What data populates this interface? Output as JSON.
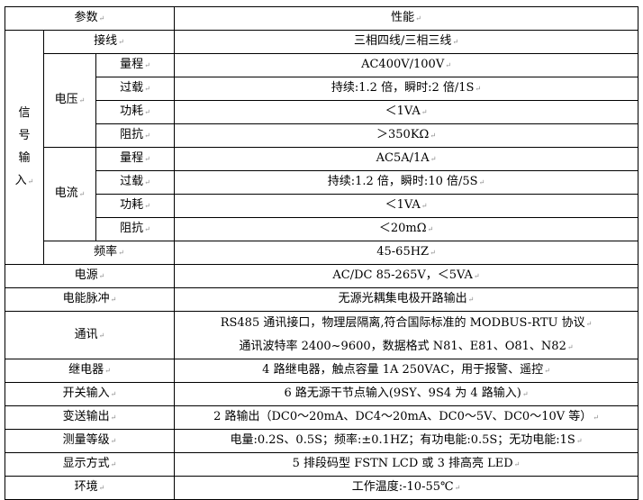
{
  "header": {
    "param": "参数",
    "perf": "性能"
  },
  "signal_input": {
    "label_chars": [
      "信",
      "号",
      "输",
      "入"
    ],
    "wiring": {
      "label": "接线",
      "value": "三相四线/三相三线"
    },
    "voltage": {
      "label": "电压",
      "rows": [
        {
          "label": "量程",
          "value": "AC400V/100V"
        },
        {
          "label": "过载",
          "value": "持续:1.2 倍，瞬时:2 倍/1S"
        },
        {
          "label": "功耗",
          "value": "＜1VA"
        },
        {
          "label": "阻抗",
          "value": "＞350KΩ"
        }
      ]
    },
    "current": {
      "label": "电流",
      "rows": [
        {
          "label": "量程",
          "value": "AC5A/1A"
        },
        {
          "label": "过载",
          "value": "持续:1.2 倍，瞬时:10 倍/5S"
        },
        {
          "label": "功耗",
          "value": "＜1VA"
        },
        {
          "label": "阻抗",
          "value": "＜20mΩ"
        }
      ]
    },
    "frequency": {
      "label": "频率",
      "value": "45-65HZ"
    }
  },
  "rows": [
    {
      "label": "电源",
      "value": "AC/DC 85-265V，＜5VA"
    },
    {
      "label": "电能脉冲",
      "value": "无源光耦集电极开路输出"
    },
    {
      "label": "通讯",
      "lines": [
        "RS485 通讯接口，物理层隔离,符合国际标准的 MODBUS-RTU 协议",
        "通讯波特率 2400~9600，数据格式 N81、E81、O81、N82"
      ]
    },
    {
      "label": "继电器",
      "value": "4 路继电器，触点容量 1A 250VAC，用于报警、遥控"
    },
    {
      "label": "开关输入",
      "value": "6 路无源干节点输入(9SY、9S4 为 4 路输入)"
    },
    {
      "label": "变送输出",
      "value": "2 路输出（DC0～20mA、DC4～20mA、DC0～5V、DC0～10V 等）"
    },
    {
      "label": "测量等级",
      "value": "电量:0.2S、0.5S；频率:±0.1HZ；有功电能:0.5S；无功电能:1S"
    },
    {
      "label": "显示方式",
      "value": "5 排段码型 FSTN LCD 或 3 排高亮 LED"
    },
    {
      "label": "环境",
      "value": "工作温度:-10-55℃"
    }
  ]
}
